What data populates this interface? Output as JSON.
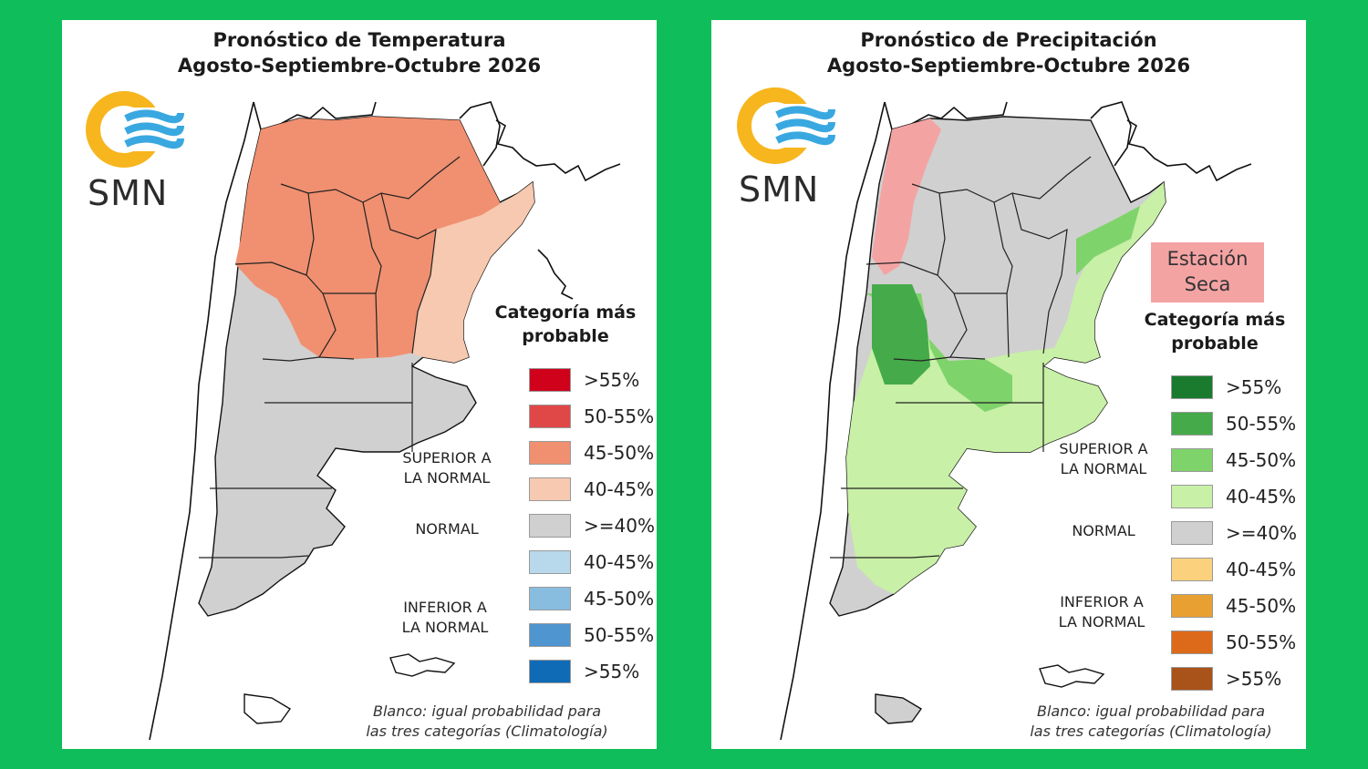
{
  "left_panel": {
    "title_line1": "Pronóstico de Temperatura",
    "title_line2": "Agosto-Septiembre-Octubre 2026",
    "logo_text": "SMN",
    "legend_title_line1": "Categoría más",
    "legend_title_line2": "probable",
    "legend": [
      {
        "label": ">55%",
        "color": "#d0021b"
      },
      {
        "label": "50-55%",
        "color": "#e04848"
      },
      {
        "label": "45-50%",
        "color": "#f09070"
      },
      {
        "label": "40-45%",
        "color": "#f6c9b0"
      },
      {
        "label": ">=40%",
        "color": "#d0d0d0"
      },
      {
        "label": "40-45%",
        "color": "#b8d8ec"
      },
      {
        "label": "45-50%",
        "color": "#88bde0"
      },
      {
        "label": "50-55%",
        "color": "#4f95d0"
      },
      {
        "label": ">55%",
        "color": "#0f6bb5"
      }
    ],
    "cat_upper_line1": "SUPERIOR A",
    "cat_upper_line2": "LA NORMAL",
    "cat_normal": "NORMAL",
    "cat_lower_line1": "INFERIOR A",
    "cat_lower_line2": "LA NORMAL",
    "footnote_line1": "Blanco: igual probabilidad para",
    "footnote_line2": "las tres categorías (Climatología)"
  },
  "right_panel": {
    "title_line1": "Pronóstico de Precipitación",
    "title_line2": "Agosto-Septiembre-Octubre 2026",
    "logo_text": "SMN",
    "dry_box_line1": "Estación",
    "dry_box_line2": "Seca",
    "legend_title_line1": "Categoría más",
    "legend_title_line2": "probable",
    "legend": [
      {
        "label": ">55%",
        "color": "#1a7a2e"
      },
      {
        "label": "50-55%",
        "color": "#45aa4a"
      },
      {
        "label": "45-50%",
        "color": "#7fd36b"
      },
      {
        "label": "40-45%",
        "color": "#c8f0a6"
      },
      {
        "label": ">=40%",
        "color": "#d0d0d0"
      },
      {
        "label": "40-45%",
        "color": "#fcd17e"
      },
      {
        "label": "45-50%",
        "color": "#e9a032"
      },
      {
        "label": "50-55%",
        "color": "#dd6a1a"
      },
      {
        "label": ">55%",
        "color": "#a9521a"
      }
    ],
    "cat_upper_line1": "SUPERIOR A",
    "cat_upper_line2": "LA NORMAL",
    "cat_normal": "NORMAL",
    "cat_lower_line1": "INFERIOR A",
    "cat_lower_line2": "LA NORMAL",
    "footnote_line1": "Blanco: igual probabilidad para",
    "footnote_line2": "las tres categorías (Climatología)"
  },
  "colors": {
    "background": "#0fbe5a",
    "logo_sun": "#f7b51e",
    "logo_waves": "#3aa8e0",
    "map_gray": "#d0d0d0",
    "temp_45_50": "#f09070",
    "temp_40_45": "#f6c9b0",
    "prec_50_55": "#45aa4a",
    "prec_45_50": "#7fd36b",
    "prec_40_45": "#c8f0a6",
    "dry_season": "#f4a3a3"
  }
}
